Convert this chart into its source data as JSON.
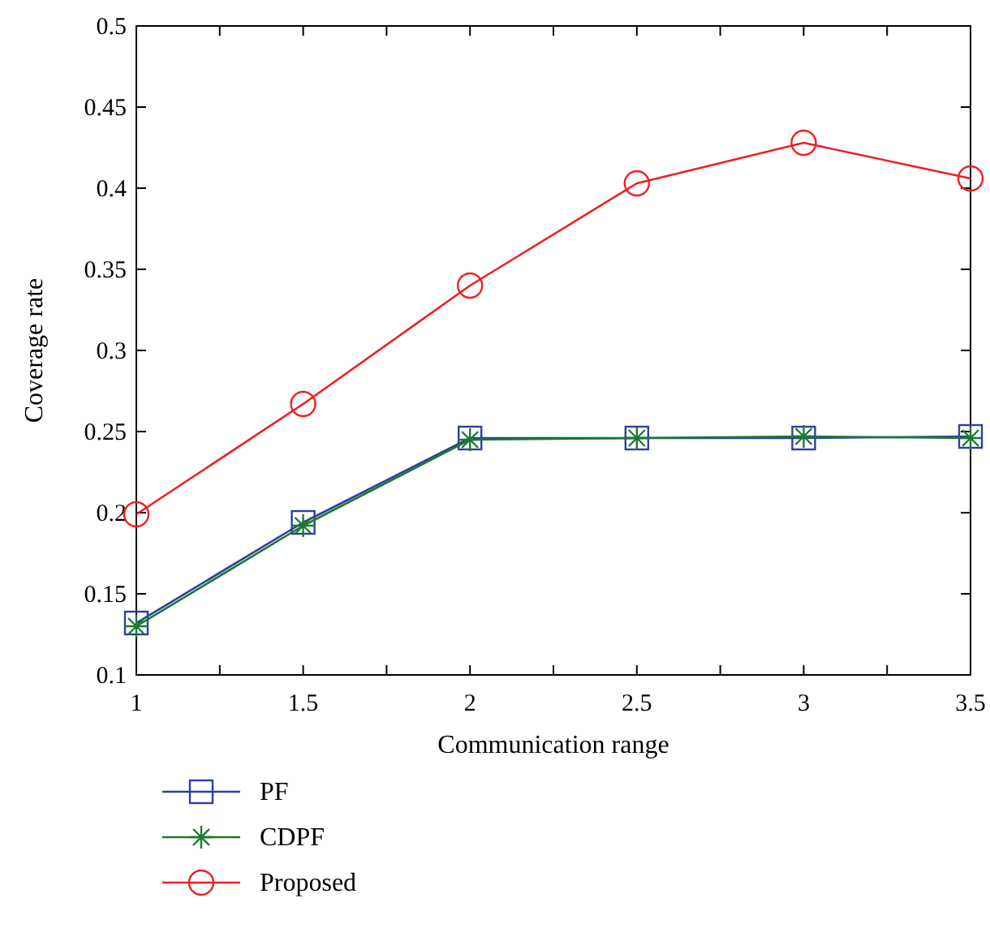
{
  "chart_data": {
    "type": "line",
    "xlabel": "Communication range",
    "ylabel": "Coverage rate",
    "x": [
      1,
      1.5,
      2,
      2.5,
      3,
      3.5
    ],
    "xlim": [
      1,
      3.5
    ],
    "xticks": [
      1,
      {
        "value": 1.25,
        "label": null
      },
      1.5,
      {
        "value": 1.75,
        "label": null
      },
      2,
      {
        "value": 2.25,
        "label": null
      },
      2.5,
      {
        "value": 2.75,
        "label": null
      },
      3,
      {
        "value": 3.25,
        "label": null
      },
      3.5
    ],
    "ylim": [
      0.1,
      0.5
    ],
    "yticks": [
      0.1,
      0.15,
      0.2,
      0.25,
      0.3,
      0.35,
      0.4,
      0.45,
      0.5
    ],
    "grid": false,
    "legend": "bottom left",
    "line_style": "solid",
    "series": [
      {
        "name": "PF",
        "color": "#2e3fa0",
        "marker": "square",
        "values": [
          0.132,
          0.194,
          0.246,
          0.246,
          0.246,
          0.247
        ]
      },
      {
        "name": "CDPF",
        "color": "#1a7a2e",
        "marker": "cross",
        "values": [
          0.13,
          0.192,
          0.245,
          0.246,
          0.247,
          0.246
        ]
      },
      {
        "name": "Proposed",
        "color": "#f02020",
        "marker": "circle",
        "values": [
          0.199,
          0.267,
          0.34,
          0.403,
          0.428,
          0.406
        ]
      }
    ]
  }
}
